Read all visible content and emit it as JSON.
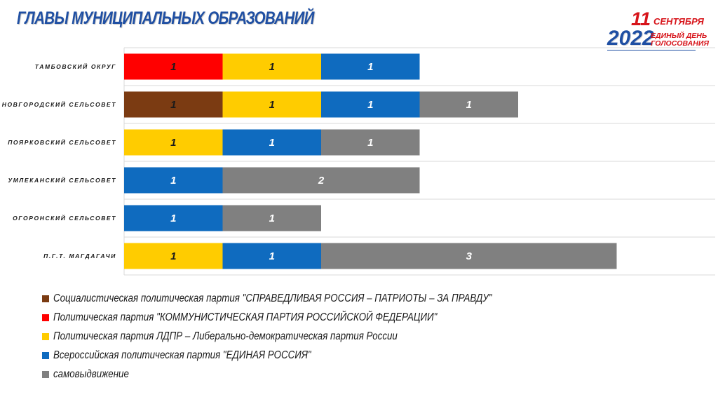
{
  "header": {
    "title": "ГЛАВЫ МУНИЦИПАЛЬНЫХ ОБРАЗОВАНИЙ"
  },
  "logo": {
    "day": "11",
    "month": "СЕНТЯБРЯ",
    "year": "2022",
    "line1": "ЕДИНЫЙ ДЕНЬ",
    "line2": "ГОЛОСОВАНИЯ"
  },
  "colors": {
    "sr": "#7b3b12",
    "kprf": "#ff0000",
    "ldpr": "#ffcc00",
    "er": "#0f6bbf",
    "self": "#808080",
    "title": "#1f4fa3",
    "grid": "#d9d9d9"
  },
  "chart_data": {
    "type": "bar",
    "orientation": "horizontal",
    "stacked": true,
    "categories": [
      "ТАМБОВСКИЙ ОКРУГ",
      "НОВГОРОДСКИЙ СЕЛЬСОВЕТ",
      "ПОЯРКОВСКИЙ СЕЛЬСОВЕТ",
      "УМЛЕКАНСКИЙ СЕЛЬСОВЕТ",
      "ОГОРОНСКИЙ СЕЛЬСОВЕТ",
      "П.Г.Т. МАГДАГАЧИ"
    ],
    "series": [
      {
        "name": "Социалистическая политическая партия \"СПРАВЕДЛИВАЯ РОССИЯ – ПАТРИОТЫ – ЗА ПРАВДУ\"",
        "key": "sr",
        "color": "#7b3b12",
        "values": [
          0,
          1,
          0,
          0,
          0,
          0
        ]
      },
      {
        "name": "Политическая партия \"КОММУНИСТИЧЕСКАЯ ПАРТИЯ РОССИЙСКОЙ ФЕДЕРАЦИИ\"",
        "key": "kprf",
        "color": "#ff0000",
        "values": [
          1,
          0,
          0,
          0,
          0,
          0
        ]
      },
      {
        "name": "Политическая партия ЛДПР – Либерально-демократическая партия России",
        "key": "ldpr",
        "color": "#ffcc00",
        "values": [
          1,
          1,
          1,
          0,
          0,
          1
        ]
      },
      {
        "name": "Всероссийская политическая партия \"ЕДИНАЯ РОССИЯ\"",
        "key": "er",
        "color": "#0f6bbf",
        "values": [
          1,
          1,
          1,
          1,
          1,
          1
        ]
      },
      {
        "name": "самовыдвижение",
        "key": "self",
        "color": "#808080",
        "values": [
          0,
          1,
          1,
          2,
          1,
          3
        ]
      }
    ],
    "legend_order": [
      "sr",
      "kprf",
      "ldpr",
      "er",
      "self"
    ],
    "grid": true,
    "legend_position": "bottom-left"
  }
}
